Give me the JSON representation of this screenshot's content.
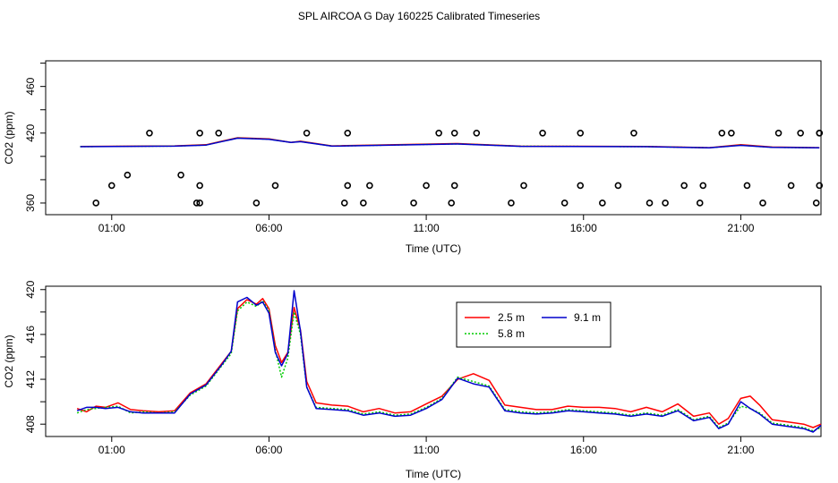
{
  "title": "SPL AIRCOA G  Day 160225  Calibrated Timeseries",
  "colors": {
    "2.5 m": "#ff0000",
    "5.8 m": "#00cc00",
    "9.1 m": "#0000cc",
    "frame": "#000000"
  },
  "chart_data": [
    {
      "type": "scatter+line",
      "panel": "top",
      "title": "",
      "xlabel": "Time (UTC)",
      "ylabel": "CO2 (ppm)",
      "xlim": [
        -1.1,
        23.55
      ],
      "ylim": [
        350,
        482
      ],
      "x_ticks": [
        1,
        6,
        11,
        16,
        21
      ],
      "x_tick_labels": [
        "01:00",
        "06:00",
        "11:00",
        "16:00",
        "21:00"
      ],
      "y_ticks": [
        360,
        380,
        400,
        420,
        440,
        460,
        480
      ],
      "y_tick_labels": [
        "360",
        "",
        "",
        "420",
        "",
        "460",
        ""
      ],
      "flags": {
        "marker": "open-circle",
        "x": [
          1.0,
          1.5,
          3.2,
          4.4,
          2.2,
          3.7,
          0.5,
          3.8,
          3.8,
          3.8,
          5.6,
          6.2,
          7.2,
          8.4,
          8.5,
          8.5,
          9.2,
          9.0,
          10.6,
          11.0,
          11.4,
          11.8,
          11.9,
          11.9,
          12.6,
          13.7,
          14.1,
          14.7,
          15.4,
          15.9,
          15.9,
          16.6,
          17.1,
          17.6,
          18.1,
          18.6,
          19.2,
          19.7,
          20.7,
          19.8,
          20.4,
          21.7,
          21.2,
          22.2,
          22.6,
          22.9,
          23.4,
          23.5,
          23.5,
          23.5
        ],
        "y": [
          375,
          384,
          384,
          420,
          420,
          360,
          360,
          360,
          375,
          420,
          360,
          375,
          420,
          360,
          375,
          420,
          375,
          360,
          360,
          375,
          420,
          360,
          375,
          420,
          420,
          360,
          375,
          420,
          360,
          375,
          420,
          360,
          375,
          420,
          360,
          360,
          375,
          360,
          420,
          375,
          420,
          360,
          375,
          420,
          375,
          420,
          360,
          375,
          420,
          420
        ]
      },
      "series": [
        {
          "name": "2.5 m",
          "x": [
            0,
            3,
            4,
            4.5,
            5,
            6,
            6.7,
            7,
            8,
            12,
            14,
            18,
            20,
            21,
            22,
            23.5
          ],
          "y": [
            408.5,
            409,
            410,
            413,
            416,
            415,
            412,
            413,
            409,
            411,
            408.8,
            408.5,
            407.5,
            410,
            408,
            407.5
          ]
        },
        {
          "name": "5.8 m",
          "x": [
            0,
            3,
            4,
            4.5,
            5,
            6,
            6.7,
            7,
            8,
            12,
            14,
            18,
            20,
            21,
            22,
            23.5
          ],
          "y": [
            408.4,
            408.9,
            409.8,
            412.8,
            415.8,
            414.8,
            412,
            412.8,
            408.9,
            410.8,
            408.7,
            408.4,
            407.4,
            409.6,
            407.8,
            407.4
          ]
        },
        {
          "name": "9.1 m",
          "x": [
            0,
            3,
            4,
            4.5,
            5,
            6,
            6.7,
            7,
            8,
            12,
            14,
            18,
            20,
            21,
            22,
            23.5
          ],
          "y": [
            408.3,
            408.8,
            409.7,
            412.7,
            415.6,
            414.6,
            412,
            412.6,
            408.8,
            410.6,
            408.6,
            408.3,
            407.3,
            409.5,
            407.7,
            407.3
          ]
        }
      ]
    },
    {
      "type": "line",
      "panel": "bottom",
      "title": "",
      "xlabel": "Time (UTC)",
      "ylabel": "CO2 (ppm)",
      "xlim": [
        -1.1,
        23.55
      ],
      "ylim": [
        406.9,
        420.3
      ],
      "x_ticks": [
        1,
        6,
        11,
        16,
        21
      ],
      "x_tick_labels": [
        "01:00",
        "06:00",
        "11:00",
        "16:00",
        "21:00"
      ],
      "y_ticks": [
        408,
        410,
        412,
        414,
        416,
        418,
        420
      ],
      "y_tick_labels": [
        "408",
        "",
        "412",
        "",
        "416",
        "",
        "420"
      ],
      "legend": {
        "position": "top-center",
        "entries": [
          "2.5 m",
          "5.8 m",
          "9.1 m"
        ]
      },
      "series": [
        {
          "name": "2.5 m",
          "x": [
            -0.1,
            0.2,
            0.5,
            0.8,
            1.2,
            1.6,
            2.0,
            2.5,
            3.0,
            3.5,
            4.0,
            4.5,
            4.8,
            5.0,
            5.3,
            5.6,
            5.8,
            6.0,
            6.2,
            6.4,
            6.6,
            6.8,
            7.0,
            7.2,
            7.5,
            8.0,
            8.5,
            9.0,
            9.5,
            10.0,
            10.5,
            11.0,
            11.5,
            12.0,
            12.5,
            13.0,
            13.5,
            14.0,
            14.5,
            15.0,
            15.5,
            16.0,
            16.5,
            17.0,
            17.5,
            18.0,
            18.5,
            19.0,
            19.5,
            20.0,
            20.3,
            20.6,
            21.0,
            21.3,
            21.6,
            22.0,
            22.5,
            23.0,
            23.3,
            23.55
          ],
          "y": [
            409.4,
            409.1,
            409.6,
            409.5,
            409.9,
            409.3,
            409.2,
            409.1,
            409.2,
            410.8,
            411.6,
            413.4,
            414.5,
            418.3,
            419.1,
            418.7,
            419.2,
            418.3,
            415.0,
            413.5,
            414.4,
            418.4,
            416.4,
            411.8,
            409.9,
            409.7,
            409.6,
            409.1,
            409.4,
            409.0,
            409.1,
            409.8,
            410.5,
            412.0,
            412.5,
            411.9,
            409.7,
            409.5,
            409.3,
            409.3,
            409.6,
            409.5,
            409.5,
            409.4,
            409.1,
            409.5,
            409.1,
            409.8,
            408.7,
            409.0,
            408.0,
            408.5,
            410.3,
            410.5,
            409.7,
            408.4,
            408.2,
            408.0,
            407.7,
            408.0
          ]
        },
        {
          "name": "5.8 m",
          "x": [
            -0.1,
            0.2,
            0.5,
            0.8,
            1.2,
            1.6,
            2.0,
            2.5,
            3.0,
            3.5,
            4.0,
            4.5,
            4.8,
            5.0,
            5.3,
            5.6,
            5.8,
            6.0,
            6.2,
            6.4,
            6.6,
            6.8,
            7.0,
            7.2,
            7.5,
            8.0,
            8.5,
            9.0,
            9.5,
            10.0,
            10.5,
            11.0,
            11.5,
            12.0,
            12.5,
            13.0,
            13.5,
            14.0,
            14.5,
            15.0,
            15.5,
            16.0,
            16.5,
            17.0,
            17.5,
            18.0,
            18.5,
            19.0,
            19.5,
            20.0,
            20.3,
            20.6,
            21.0,
            21.3,
            21.6,
            22.0,
            22.5,
            23.0,
            23.3,
            23.55
          ],
          "y": [
            409.0,
            409.3,
            409.4,
            409.5,
            409.6,
            409.0,
            409.1,
            409.0,
            409.1,
            410.6,
            411.4,
            413.2,
            414.3,
            418.1,
            418.9,
            418.5,
            419.0,
            418.1,
            414.6,
            412.2,
            413.9,
            418.0,
            416.0,
            411.3,
            409.5,
            409.4,
            409.3,
            408.9,
            409.1,
            408.8,
            408.9,
            409.5,
            410.3,
            412.2,
            411.8,
            411.4,
            409.3,
            409.1,
            409.0,
            409.1,
            409.3,
            409.2,
            409.1,
            409.0,
            408.8,
            409.0,
            408.8,
            409.3,
            408.4,
            408.7,
            407.7,
            408.1,
            409.6,
            409.4,
            409.0,
            408.1,
            407.9,
            407.7,
            407.4,
            407.7
          ]
        },
        {
          "name": "9.1 m",
          "x": [
            -0.1,
            0.2,
            0.5,
            0.8,
            1.2,
            1.6,
            2.0,
            2.5,
            3.0,
            3.5,
            4.0,
            4.5,
            4.8,
            5.0,
            5.3,
            5.6,
            5.8,
            6.0,
            6.2,
            6.4,
            6.6,
            6.8,
            7.0,
            7.2,
            7.5,
            8.0,
            8.5,
            9.0,
            9.5,
            10.0,
            10.5,
            11.0,
            11.5,
            12.0,
            12.5,
            13.0,
            13.5,
            14.0,
            14.5,
            15.0,
            15.5,
            16.0,
            16.5,
            17.0,
            17.5,
            18.0,
            18.5,
            19.0,
            19.5,
            20.0,
            20.3,
            20.6,
            21.0,
            21.3,
            21.6,
            22.0,
            22.5,
            23.0,
            23.3,
            23.55
          ],
          "y": [
            409.2,
            409.5,
            409.5,
            409.4,
            409.5,
            409.1,
            409.0,
            409.0,
            409.0,
            410.7,
            411.5,
            413.3,
            414.5,
            418.9,
            419.3,
            418.6,
            418.9,
            417.9,
            414.4,
            413.2,
            414.3,
            419.9,
            416.3,
            411.3,
            409.4,
            409.3,
            409.2,
            408.8,
            409.0,
            408.7,
            408.8,
            409.4,
            410.2,
            412.1,
            411.6,
            411.3,
            409.2,
            409.0,
            408.9,
            409.0,
            409.2,
            409.1,
            409.0,
            408.9,
            408.7,
            408.9,
            408.7,
            409.2,
            408.3,
            408.6,
            407.6,
            408.0,
            410.0,
            409.4,
            408.9,
            408.0,
            407.8,
            407.6,
            407.3,
            407.9
          ]
        }
      ]
    }
  ]
}
